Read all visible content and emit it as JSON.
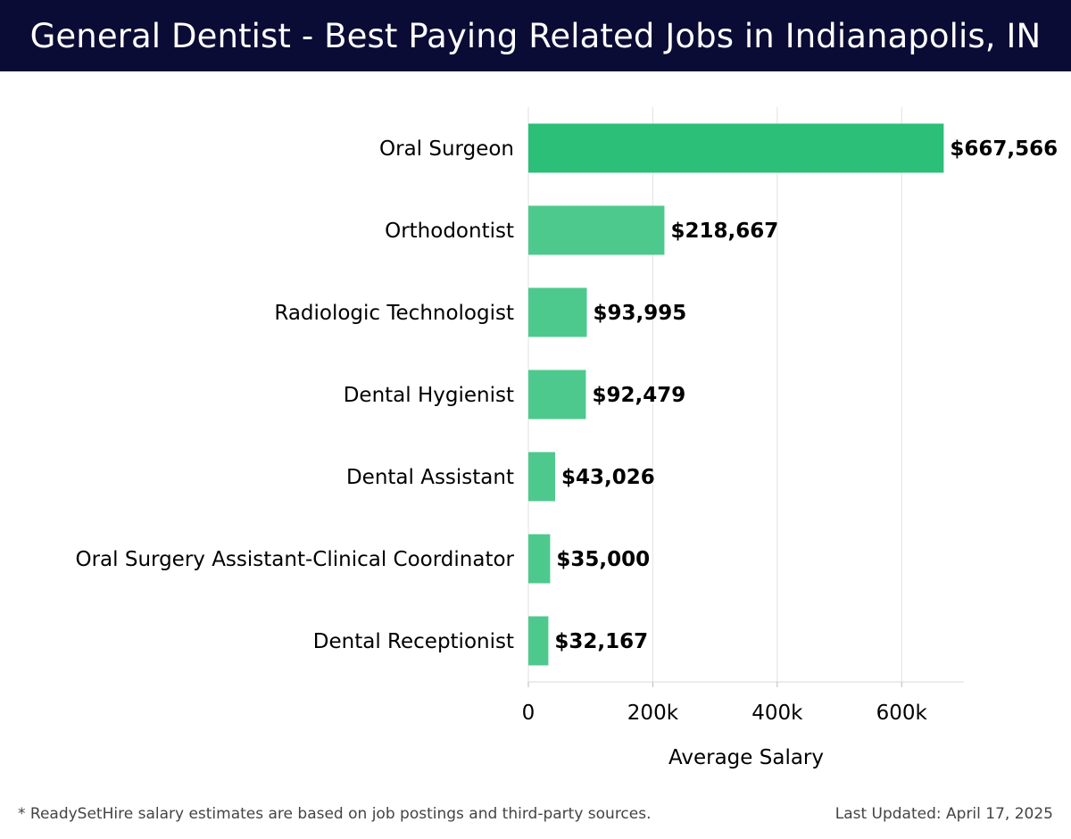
{
  "header": {
    "title": "General Dentist - Best Paying Related Jobs in Indianapolis, IN"
  },
  "chart_data": {
    "type": "bar",
    "orientation": "horizontal",
    "title": "General Dentist - Best Paying Related Jobs in Indianapolis, IN",
    "categories": [
      "Oral Surgeon",
      "Orthodontist",
      "Radiologic Technologist",
      "Dental Hygienist",
      "Dental Assistant",
      "Oral Surgery Assistant-Clinical Coordinator",
      "Dental Receptionist"
    ],
    "values": [
      667566,
      218667,
      93995,
      92479,
      43026,
      35000,
      32167
    ],
    "value_labels": [
      "$667,566",
      "$218,667",
      "$93,995",
      "$92,479",
      "$43,026",
      "$35,000",
      "$32,167"
    ],
    "xlabel": "Average Salary",
    "ylabel": "",
    "xlim": [
      0,
      700000
    ],
    "xticks": [
      0,
      200000,
      400000,
      600000
    ],
    "xtick_labels": [
      "0",
      "200k",
      "400k",
      "600k"
    ],
    "grid": true,
    "colors": {
      "highlight": "#2bbf78",
      "bar": "#4ec98e"
    }
  },
  "footer": {
    "note": "* ReadySetHire salary estimates are based on job postings and third-party sources.",
    "updated": "Last Updated: April 17, 2025"
  }
}
